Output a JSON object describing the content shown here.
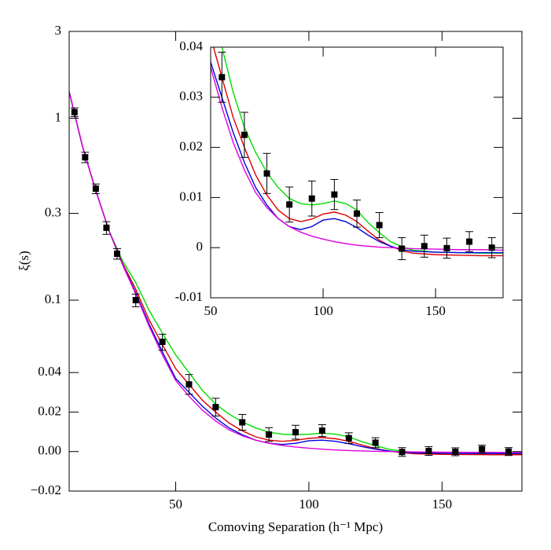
{
  "chart_data": [
    {
      "type": "line",
      "xlabel": "Comoving Separation (h⁻¹ Mpc)",
      "ylabel": "ξ(s)",
      "xlim": [
        10,
        180
      ],
      "xticks": [
        50,
        100,
        150
      ],
      "ylim": [
        -0.02,
        3
      ],
      "yscale": "symlog",
      "linthresh": 0.04,
      "yticks": [
        3,
        1,
        0.3,
        0.1,
        0.04,
        0.02,
        {
          "value": 0,
          "label": "0.00"
        },
        {
          "value": -0.02,
          "label": "−0.02"
        }
      ],
      "x": [
        10,
        15,
        20,
        25,
        30,
        35,
        40,
        45,
        50,
        55,
        60,
        65,
        70,
        75,
        80,
        85,
        90,
        95,
        100,
        105,
        110,
        115,
        120,
        125,
        130,
        135,
        140,
        150,
        160,
        170,
        180
      ],
      "series": [
        {
          "color": "#00dd00",
          "values": [
            1.4,
            0.7,
            0.4,
            0.24,
            0.165,
            0.125,
            0.088,
            0.066,
            0.05,
            0.04,
            0.031,
            0.024,
            0.019,
            0.015,
            0.012,
            0.0098,
            0.0088,
            0.0085,
            0.0088,
            0.0093,
            0.0088,
            0.0075,
            0.005,
            0.003,
            0.0012,
            0.0002,
            -0.0005,
            -0.0009,
            -0.001,
            -0.0011,
            -0.0011
          ]
        },
        {
          "color": "#e00000",
          "values": [
            1.4,
            0.7,
            0.4,
            0.24,
            0.16,
            0.115,
            0.078,
            0.057,
            0.042,
            0.034,
            0.026,
            0.02,
            0.0145,
            0.0105,
            0.0075,
            0.0058,
            0.0052,
            0.0057,
            0.0067,
            0.0071,
            0.0065,
            0.0052,
            0.0033,
            0.0015,
            0.0003,
            -0.0006,
            -0.0011,
            -0.0014,
            -0.0015,
            -0.0016,
            -0.0016
          ]
        },
        {
          "color": "#0000dd",
          "values": [
            1.4,
            0.7,
            0.4,
            0.24,
            0.158,
            0.11,
            0.074,
            0.052,
            0.037,
            0.03,
            0.023,
            0.017,
            0.012,
            0.0085,
            0.0058,
            0.0042,
            0.0036,
            0.0042,
            0.0055,
            0.0058,
            0.0052,
            0.004,
            0.0025,
            0.0012,
            0.0003,
            -0.0004,
            -0.0007,
            -0.0009,
            -0.001,
            -0.001,
            -0.001
          ]
        },
        {
          "color": "#dd00dd",
          "values": [
            1.4,
            0.7,
            0.4,
            0.24,
            0.157,
            0.108,
            0.072,
            0.05,
            0.036,
            0.028,
            0.021,
            0.0155,
            0.011,
            0.008,
            0.0058,
            0.0042,
            0.0031,
            0.0023,
            0.0017,
            0.0012,
            0.0008,
            0.0005,
            0.0003,
            0.0001,
            0,
            -0.0001,
            -0.0002,
            -0.0003,
            -0.0004,
            -0.0004,
            -0.0005
          ]
        }
      ],
      "points": {
        "color": "#000000",
        "x": [
          12,
          16,
          20,
          24,
          28,
          35,
          45,
          55,
          65,
          75,
          85,
          95,
          105,
          115,
          125,
          135,
          145,
          155,
          165,
          175
        ],
        "values": [
          1.08,
          0.61,
          0.41,
          0.25,
          0.18,
          0.1,
          0.059,
          0.034,
          0.0225,
          0.0148,
          0.0086,
          0.0098,
          0.0106,
          0.0068,
          0.0045,
          -0.0002,
          0.0003,
          -0.0001,
          0.0012,
          0
        ],
        "errors": [
          0.06,
          0.04,
          0.025,
          0.02,
          0.012,
          0.008,
          0.006,
          0.005,
          0.0045,
          0.004,
          0.0035,
          0.0035,
          0.003,
          0.0027,
          0.0025,
          0.0022,
          0.0022,
          0.002,
          0.002,
          0.002
        ]
      }
    },
    {
      "type": "line",
      "xlim": [
        50,
        180
      ],
      "xticks": [
        50,
        100,
        150
      ],
      "ylim": [
        -0.01,
        0.04
      ],
      "yticks": [
        0.04,
        0.03,
        0.02,
        0.01,
        0,
        -0.01
      ],
      "x": [
        50,
        55,
        60,
        65,
        70,
        75,
        80,
        85,
        90,
        95,
        100,
        105,
        110,
        115,
        120,
        125,
        130,
        135,
        140,
        150,
        160,
        170,
        180
      ],
      "series": [
        {
          "color": "#00dd00",
          "values": [
            0.05,
            0.04,
            0.031,
            0.024,
            0.019,
            0.015,
            0.012,
            0.0098,
            0.0088,
            0.0085,
            0.0088,
            0.0093,
            0.0088,
            0.0075,
            0.005,
            0.003,
            0.0012,
            0.0002,
            -0.0005,
            -0.0009,
            -0.001,
            -0.0011,
            -0.0011
          ]
        },
        {
          "color": "#e00000",
          "values": [
            0.042,
            0.034,
            0.026,
            0.02,
            0.0145,
            0.0105,
            0.0075,
            0.0058,
            0.0052,
            0.0057,
            0.0067,
            0.0071,
            0.0065,
            0.0052,
            0.0033,
            0.0015,
            0.0003,
            -0.0006,
            -0.0011,
            -0.0014,
            -0.0015,
            -0.0016,
            -0.0016
          ]
        },
        {
          "color": "#0000dd",
          "values": [
            0.037,
            0.03,
            0.023,
            0.017,
            0.012,
            0.0085,
            0.0058,
            0.0042,
            0.0036,
            0.0042,
            0.0055,
            0.0058,
            0.0052,
            0.004,
            0.0025,
            0.0012,
            0.0003,
            -0.0004,
            -0.0007,
            -0.0009,
            -0.001,
            -0.001,
            -0.001
          ]
        },
        {
          "color": "#dd00dd",
          "values": [
            0.036,
            0.028,
            0.021,
            0.0155,
            0.011,
            0.008,
            0.0058,
            0.0042,
            0.0031,
            0.0023,
            0.0017,
            0.0012,
            0.0008,
            0.0005,
            0.0003,
            0.0001,
            0,
            -0.0001,
            -0.0002,
            -0.0003,
            -0.0004,
            -0.0004,
            -0.0005
          ]
        }
      ],
      "points": {
        "color": "#000000",
        "x": [
          55,
          65,
          75,
          85,
          95,
          105,
          115,
          125,
          135,
          145,
          155,
          165,
          175
        ],
        "values": [
          0.034,
          0.0225,
          0.0148,
          0.0086,
          0.0098,
          0.0106,
          0.0068,
          0.0045,
          -0.0002,
          0.0003,
          -0.0001,
          0.0012,
          0
        ],
        "errors": [
          0.005,
          0.0045,
          0.004,
          0.0035,
          0.0035,
          0.003,
          0.0027,
          0.0025,
          0.0022,
          0.0022,
          0.002,
          0.002,
          0.002
        ]
      }
    }
  ]
}
